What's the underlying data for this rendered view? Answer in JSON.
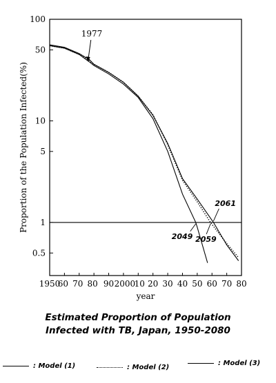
{
  "chart_data": {
    "type": "line",
    "title_line1": "Estimated Proportion of Population",
    "title_line2": "Infected with TB, Japan, 1950-2080",
    "xlabel": "year",
    "ylabel": "Proportion of the Population Infected(%)",
    "yscale": "log",
    "ylim": [
      0.3,
      100
    ],
    "xlim": [
      1950,
      2080
    ],
    "x_ticks": [
      1950,
      1960,
      1970,
      1980,
      1990,
      2000,
      2010,
      2020,
      2030,
      2040,
      2050,
      2060,
      2070,
      2080
    ],
    "x_tick_labels": [
      "1950",
      "60",
      "70",
      "80",
      "90",
      "2000",
      "10",
      "20",
      "30",
      "40",
      "50",
      "60",
      "70",
      "80"
    ],
    "y_ticks": [
      0.5,
      1,
      5,
      10,
      50,
      100
    ],
    "y_tick_labels": [
      "0.5",
      "1",
      "5",
      "10",
      "50",
      "100"
    ],
    "reference_line": 1,
    "series": [
      {
        "name": "Model (1)",
        "style": "solid",
        "x": [
          1950,
          1960,
          1970,
          1977,
          1980,
          1990,
          2000,
          2010,
          2020,
          2030,
          2040,
          2049,
          2050,
          2057
        ],
        "y": [
          55,
          52,
          45,
          38,
          35,
          29,
          23,
          17,
          10.5,
          5,
          1.9,
          1.0,
          0.9,
          0.4
        ]
      },
      {
        "name": "Model (2)",
        "style": "dotted",
        "x": [
          1950,
          1960,
          1970,
          1977,
          1980,
          1990,
          2000,
          2010,
          2020,
          2030,
          2040,
          2050,
          2059,
          2070,
          2078
        ],
        "y": [
          55,
          52,
          45,
          39,
          36,
          30,
          24,
          17.5,
          11.5,
          5.8,
          2.6,
          1.6,
          1.0,
          0.62,
          0.45
        ]
      },
      {
        "name": "Model (3)",
        "style": "solid",
        "x": [
          1950,
          1960,
          1970,
          1977,
          1980,
          1990,
          2000,
          2010,
          2020,
          2030,
          2040,
          2050,
          2061,
          2070,
          2078
        ],
        "y": [
          56,
          53,
          46,
          40,
          36,
          30,
          24,
          17.5,
          11.3,
          6,
          2.7,
          1.7,
          1.0,
          0.6,
          0.42
        ]
      }
    ],
    "annotations": [
      {
        "text": "1977",
        "x": 1977,
        "y": 38
      },
      {
        "text": "2049",
        "x": 2049,
        "y": 1
      },
      {
        "text": "2059",
        "x": 2059,
        "y": 1
      },
      {
        "text": "2061",
        "x": 2061,
        "y": 1
      }
    ],
    "legend": [
      {
        "label": ": Model (1)",
        "style": "solid"
      },
      {
        "label": ": Model (2)",
        "style": "dotted"
      },
      {
        "label": ": Model (3)",
        "style": "solid"
      }
    ]
  }
}
